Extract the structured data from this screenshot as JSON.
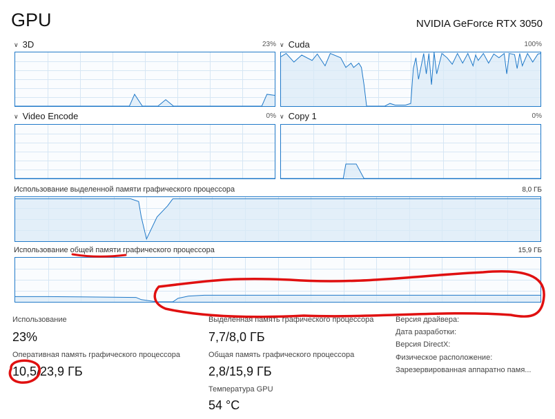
{
  "header": {
    "title": "GPU",
    "device": "NVIDIA GeForce RTX 3050"
  },
  "engines": [
    {
      "name": "3D",
      "percent": "23%"
    },
    {
      "name": "Cuda",
      "percent": "100%"
    },
    {
      "name": "Video Encode",
      "percent": "0%"
    },
    {
      "name": "Copy 1",
      "percent": "0%"
    }
  ],
  "memory": {
    "dedicated": {
      "label": "Использование выделенной памяти графического процессора",
      "max": "8,0 ГБ"
    },
    "shared": {
      "label": "Использование общей памяти графического процессора",
      "max": "15,9 ГБ"
    }
  },
  "stats": {
    "utilization": {
      "label": "Использование",
      "value": "23%"
    },
    "gpu_memory": {
      "label": "Оперативная память графического процессора",
      "value": "10,5/23,9 ГБ"
    },
    "dedicated_mem": {
      "label": "Выделенная память графического процессора",
      "value": "7,7/8,0 ГБ"
    },
    "shared_mem": {
      "label": "Общая память графического процессора",
      "value": "2,8/15,9 ГБ"
    },
    "temperature": {
      "label": "Температура GPU",
      "value": "54 °C"
    }
  },
  "info": [
    "Версия драйвера:",
    "Дата разработки:",
    "Версия DirectX:",
    "Физическое расположение:",
    "Зарезервированная аппаратно памя..."
  ],
  "colors": {
    "graph_line": "#1e78c8",
    "graph_fill": "#d9e9f7",
    "grid": "#d6e6f4",
    "annotation": "#e01010"
  }
}
